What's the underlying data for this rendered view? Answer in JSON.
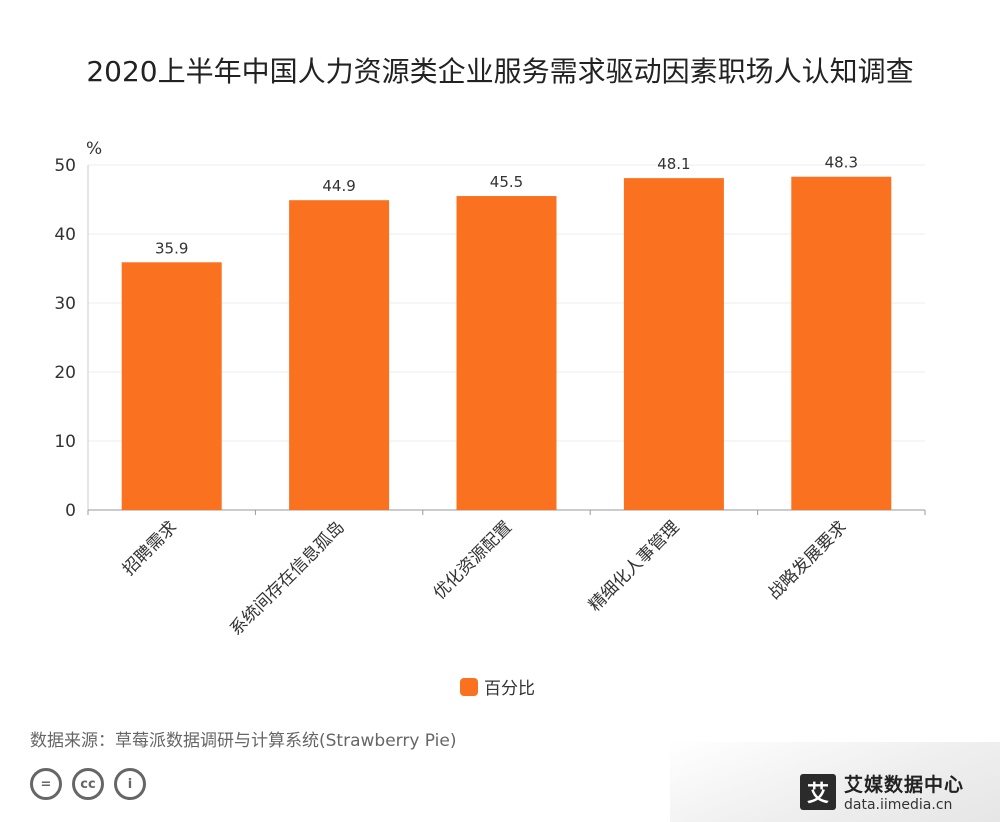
{
  "chart_data": {
    "type": "bar",
    "title": "2020上半年中国人力资源类企业服务需求驱动因素职场人认知调查",
    "ylabel": "%",
    "xlabel": "",
    "categories": [
      "招聘需求",
      "系统间存在信息孤岛",
      "优化资源配置",
      "精细化人事管理",
      "战略发展要求"
    ],
    "series": [
      {
        "name": "百分比",
        "values": [
          35.9,
          44.9,
          45.5,
          48.1,
          48.3
        ],
        "color": "#fa7220"
      }
    ],
    "y_ticks": [
      "0",
      "10",
      "20",
      "30",
      "40",
      "50"
    ],
    "ylim": [
      0,
      50
    ],
    "grid": true,
    "legend_position": "bottom"
  },
  "source": "数据来源：草莓派数据调研与计算系统(Strawberry  Pie)",
  "license_icons": [
    "equal-icon",
    "cc-icon",
    "person-icon"
  ],
  "license_labels": [
    "=",
    "cc",
    "i"
  ],
  "brand": {
    "logo_char": "艾",
    "name": "艾媒数据中心",
    "url": "data.iimedia.cn"
  }
}
